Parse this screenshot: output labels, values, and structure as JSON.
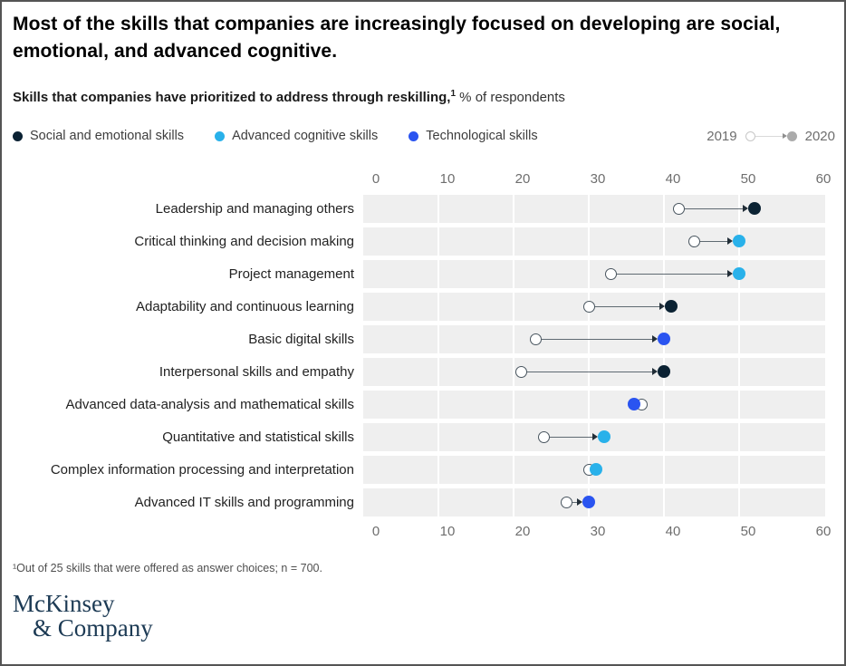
{
  "header": {
    "title": "Most of the skills that companies are increasingly focused on developing are social, emotional, and advanced cognitive.",
    "subtitle_bold": "Skills that companies have prioritized to address through reskilling,",
    "subtitle_sup": "1",
    "subtitle_rest": " % of respondents"
  },
  "colors": {
    "social": "#0b2233",
    "cognitive": "#29b1ea",
    "tech": "#2a54f0",
    "row_background": "#efefef",
    "year_2020_dot": "#ababab"
  },
  "legend": {
    "items": [
      {
        "label": "Social and emotional skills",
        "color_key": "social"
      },
      {
        "label": "Advanced cognitive skills",
        "color_key": "cognitive"
      },
      {
        "label": "Technological skills",
        "color_key": "tech"
      }
    ],
    "year_start_label": "2019",
    "year_end_label": "2020"
  },
  "chart_data": {
    "type": "dumbbell",
    "title": "Skills that companies have prioritized to address through reskilling, % of respondents",
    "categories": [
      "Leadership and managing others",
      "Critical thinking and decision making",
      "Project management",
      "Adaptability and continuous learning",
      "Basic digital skills",
      "Interpersonal skills and empathy",
      "Advanced data-analysis and mathematical skills",
      "Quantitative and statistical skills",
      "Complex information processing and interpretation",
      "Advanced IT skills and programming"
    ],
    "series": [
      {
        "name": "2019",
        "values": [
          42,
          44,
          33,
          30,
          23,
          21,
          37,
          24,
          30,
          27
        ]
      },
      {
        "name": "2020",
        "values": [
          52,
          50,
          50,
          41,
          40,
          40,
          36,
          32,
          31,
          30
        ]
      }
    ],
    "category_groups": [
      "social",
      "cognitive",
      "cognitive",
      "social",
      "tech",
      "social",
      "tech",
      "cognitive",
      "cognitive",
      "tech"
    ],
    "xlim": [
      0,
      60
    ],
    "x_ticks": [
      0,
      10,
      20,
      30,
      40,
      50,
      60
    ],
    "gridlines": [
      10,
      20,
      30,
      40,
      50
    ],
    "axis_positions": [
      "top",
      "bottom"
    ],
    "legend_position": "top"
  },
  "footnote": "¹Out of 25 skills that were offered as answer choices; n = 700.",
  "logo": {
    "line1": "McKinsey",
    "line2": "& Company"
  }
}
